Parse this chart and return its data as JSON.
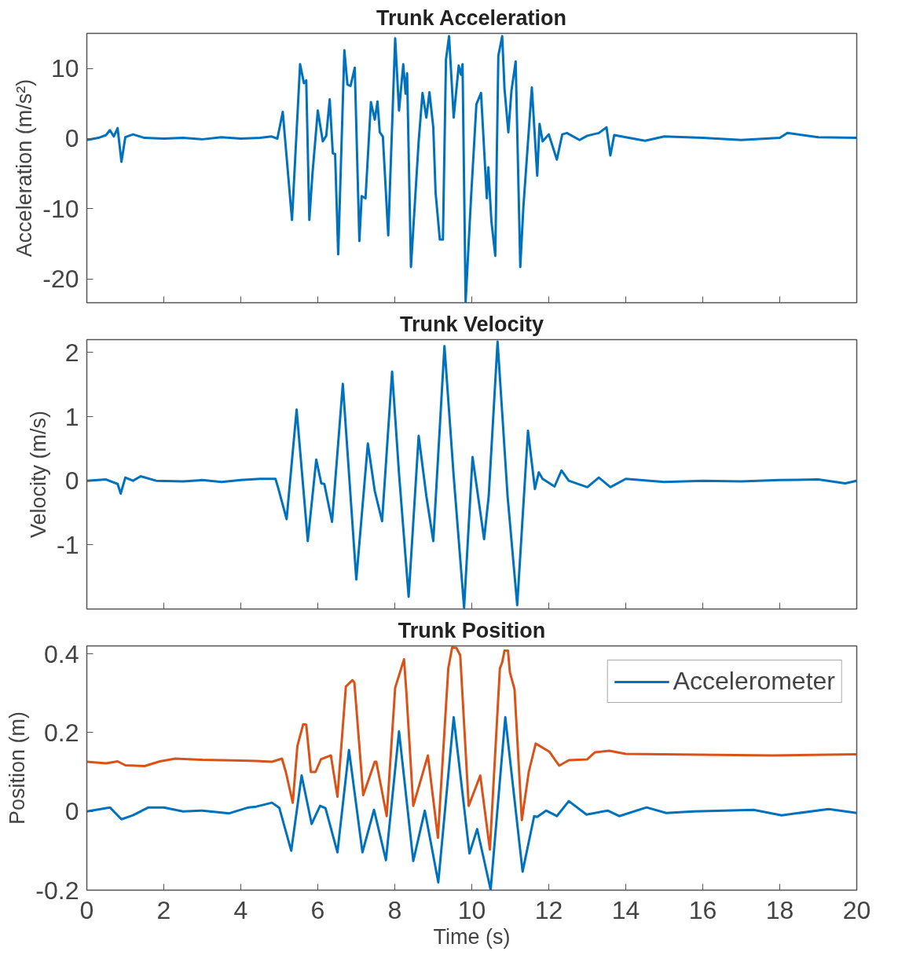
{
  "chart_data": [
    {
      "type": "line",
      "title": "Trunk Acceleration",
      "ylabel": "Acceleration (m/s²)",
      "xlim": [
        0,
        20
      ],
      "xticks": [
        0,
        2,
        4,
        6,
        8,
        10,
        12,
        14,
        16,
        18,
        20
      ],
      "ylim": [
        -23.4,
        15
      ],
      "yticks": [
        -20,
        -10,
        0,
        10
      ],
      "tick_labels": "y",
      "grid": false,
      "legend": false,
      "line_style": "solid",
      "series": [
        {
          "color": "#0072bd",
          "x": [
            0,
            0.3,
            0.5,
            0.6,
            0.7,
            0.8,
            0.9,
            1.0,
            1.2,
            1.5,
            2.0,
            2.5,
            3.0,
            3.5,
            4.0,
            4.5,
            4.8,
            4.95,
            5.09,
            5.33,
            5.54,
            5.64,
            5.7,
            5.78,
            5.86,
            6.0,
            6.13,
            6.22,
            6.31,
            6.39,
            6.45,
            6.53,
            6.69,
            6.77,
            6.85,
            6.96,
            7.08,
            7.14,
            7.24,
            7.38,
            7.48,
            7.55,
            7.61,
            7.69,
            7.83,
            8.01,
            8.11,
            8.22,
            8.28,
            8.32,
            8.42,
            8.62,
            8.72,
            8.82,
            8.9,
            9.0,
            9.06,
            9.17,
            9.25,
            9.33,
            9.41,
            9.53,
            9.66,
            9.72,
            9.76,
            9.84,
            9.98,
            10.12,
            10.24,
            10.39,
            10.43,
            10.51,
            10.61,
            10.69,
            10.79,
            10.85,
            10.95,
            11.03,
            11.14,
            11.26,
            11.34,
            11.56,
            11.7,
            11.76,
            11.84,
            12.0,
            12.21,
            12.35,
            12.47,
            12.8,
            13.0,
            13.3,
            13.5,
            13.6,
            13.7,
            14.0,
            14.5,
            15.0,
            16.0,
            17.0,
            18.0,
            18.2,
            19.0,
            20.0
          ],
          "values": [
            -0.2,
            0.1,
            0.5,
            1.2,
            0.3,
            1.5,
            -3.3,
            0.2,
            0.6,
            0.1,
            0.0,
            0.1,
            -0.1,
            0.2,
            0.0,
            0.1,
            0.3,
            0.0,
            3.8,
            -11.6,
            10.6,
            7.9,
            8.3,
            -11.6,
            -5.1,
            4.0,
            -0.4,
            0.4,
            5.6,
            -2.1,
            -2.2,
            -16.5,
            12.6,
            7.7,
            7.5,
            10.1,
            -14.6,
            -8.2,
            -8.5,
            5.2,
            2.7,
            5.3,
            0.9,
            0.3,
            -13.8,
            14.3,
            4.0,
            10.6,
            6.4,
            9.3,
            -18.3,
            -0.4,
            6.5,
            3.0,
            6.6,
            1.6,
            -7.7,
            -14.4,
            -14.4,
            11.3,
            14.6,
            3.0,
            10.4,
            9.1,
            10.6,
            -23.3,
            -8.5,
            4.9,
            6.5,
            -8.5,
            -4.1,
            -11.8,
            -16.7,
            11.8,
            14.6,
            7.1,
            0.9,
            6.8,
            11.0,
            -18.3,
            -9.8,
            7.3,
            -5.3,
            2.1,
            -0.4,
            0.6,
            -3.0,
            0.6,
            0.8,
            -0.2,
            0.4,
            0.8,
            1.6,
            -2.4,
            0.5,
            0.2,
            -0.3,
            0.3,
            0.1,
            -0.2,
            0.1,
            0.8,
            0.2,
            0.1
          ]
        }
      ]
    },
    {
      "type": "line",
      "title": "Trunk Velocity",
      "ylabel": "Velocity (m/s)",
      "xlim": [
        0,
        20
      ],
      "xticks": [
        0,
        2,
        4,
        6,
        8,
        10,
        12,
        14,
        16,
        18,
        20
      ],
      "ylim": [
        -2,
        2.2
      ],
      "yticks": [
        -1,
        0,
        1,
        2
      ],
      "tick_labels": "y",
      "grid": false,
      "legend": false,
      "line_style": "solid",
      "series": [
        {
          "color": "#0072bd",
          "x": [
            0,
            0.5,
            0.8,
            0.88,
            1.0,
            1.2,
            1.4,
            1.8,
            2.5,
            3.0,
            3.5,
            4.0,
            4.5,
            4.9,
            4.97,
            5.19,
            5.45,
            5.74,
            5.96,
            6.09,
            6.17,
            6.37,
            6.65,
            7.0,
            7.3,
            7.48,
            7.67,
            7.93,
            8.11,
            8.36,
            8.62,
            8.82,
            9.0,
            9.29,
            9.53,
            9.8,
            10.02,
            10.32,
            10.44,
            10.67,
            10.93,
            11.18,
            11.46,
            11.64,
            11.74,
            11.84,
            12.15,
            12.33,
            12.52,
            13.0,
            13.3,
            13.6,
            14.0,
            15.0,
            16.0,
            17.0,
            18.0,
            19.0,
            19.7,
            20.0
          ],
          "values": [
            0.0,
            0.02,
            -0.05,
            -0.2,
            0.05,
            0.0,
            0.07,
            0.0,
            -0.01,
            0.01,
            -0.02,
            0.01,
            0.03,
            0.03,
            -0.11,
            -0.6,
            1.11,
            -0.94,
            0.33,
            -0.04,
            -0.05,
            -0.64,
            1.51,
            -1.54,
            0.58,
            -0.16,
            -0.63,
            1.7,
            0.11,
            -1.81,
            0.7,
            -0.24,
            -0.94,
            2.1,
            0.07,
            -1.98,
            0.37,
            -0.91,
            -0.24,
            2.17,
            -0.24,
            -1.94,
            0.78,
            -0.13,
            0.13,
            0.03,
            -0.09,
            0.16,
            0.0,
            -0.1,
            0.05,
            -0.1,
            0.03,
            -0.02,
            0.0,
            -0.01,
            0.01,
            0.02,
            -0.04,
            0.0
          ]
        }
      ]
    },
    {
      "type": "line",
      "title": "Trunk Position",
      "ylabel": "Position (m)",
      "xlabel": "Time (s)",
      "xlim": [
        0,
        20
      ],
      "xticks": [
        0,
        2,
        4,
        6,
        8,
        10,
        12,
        14,
        16,
        18,
        20
      ],
      "ylim": [
        -0.2,
        0.42
      ],
      "yticks": [
        -0.2,
        0,
        0.2,
        0.4
      ],
      "grid": false,
      "legend": "top right",
      "line_style": "solid",
      "series": [
        {
          "name": "Accelerometer",
          "color": "#0072bd",
          "x": [
            0,
            0.6,
            0.9,
            1.2,
            1.6,
            2.0,
            2.5,
            3.0,
            3.7,
            4.2,
            4.4,
            4.81,
            5.0,
            5.31,
            5.58,
            5.84,
            6.06,
            6.2,
            6.51,
            6.81,
            7.16,
            7.46,
            7.77,
            8.11,
            8.48,
            8.78,
            9.13,
            9.53,
            9.94,
            10.14,
            10.49,
            10.87,
            11.32,
            11.62,
            11.7,
            11.93,
            12.21,
            12.52,
            12.98,
            13.53,
            13.83,
            14.54,
            15.05,
            15.76,
            17.32,
            18.05,
            19.27,
            20.0
          ],
          "values": [
            0.0,
            0.01,
            -0.02,
            -0.01,
            0.01,
            0.01,
            0.0,
            0.002,
            -0.005,
            0.01,
            0.012,
            0.022,
            0.009,
            -0.1,
            0.091,
            -0.032,
            0.014,
            0.008,
            -0.104,
            0.156,
            -0.104,
            0.004,
            -0.124,
            0.203,
            -0.126,
            0.002,
            -0.18,
            0.239,
            -0.107,
            -0.045,
            -0.199,
            0.239,
            -0.153,
            -0.012,
            -0.014,
            0.002,
            -0.012,
            0.026,
            -0.008,
            0.002,
            -0.012,
            0.01,
            -0.004,
            0.0,
            0.004,
            -0.01,
            0.006,
            -0.004
          ]
        },
        {
          "color": "#d95319",
          "x": [
            0,
            0.5,
            0.8,
            1.0,
            1.5,
            1.9,
            2.3,
            3.0,
            4.0,
            4.4,
            4.81,
            5.07,
            5.17,
            5.35,
            5.47,
            5.62,
            5.7,
            5.82,
            5.94,
            6.08,
            6.34,
            6.51,
            6.73,
            6.9,
            6.95,
            7.18,
            7.48,
            7.52,
            7.79,
            8.01,
            8.24,
            8.3,
            8.48,
            8.86,
            9.12,
            9.39,
            9.49,
            9.6,
            9.7,
            9.92,
            10.22,
            10.47,
            10.73,
            10.79,
            10.85,
            10.94,
            10.99,
            11.11,
            11.3,
            11.48,
            11.66,
            12.01,
            12.27,
            12.52,
            13.0,
            13.2,
            13.57,
            14.0,
            14.97,
            17.8,
            20.0
          ],
          "values": [
            0.126,
            0.122,
            0.127,
            0.117,
            0.115,
            0.127,
            0.134,
            0.131,
            0.129,
            0.128,
            0.126,
            0.134,
            0.1,
            0.022,
            0.166,
            0.221,
            0.22,
            0.1,
            0.1,
            0.132,
            0.142,
            0.037,
            0.317,
            0.333,
            0.327,
            0.041,
            0.126,
            0.126,
            -0.012,
            0.314,
            0.386,
            0.304,
            0.014,
            0.142,
            -0.067,
            0.363,
            0.416,
            0.415,
            0.396,
            0.014,
            0.091,
            -0.097,
            0.363,
            0.378,
            0.408,
            0.408,
            0.353,
            0.31,
            -0.022,
            0.1,
            0.172,
            0.152,
            0.116,
            0.13,
            0.132,
            0.15,
            0.154,
            0.146,
            0.145,
            0.142,
            0.145
          ]
        }
      ]
    }
  ]
}
